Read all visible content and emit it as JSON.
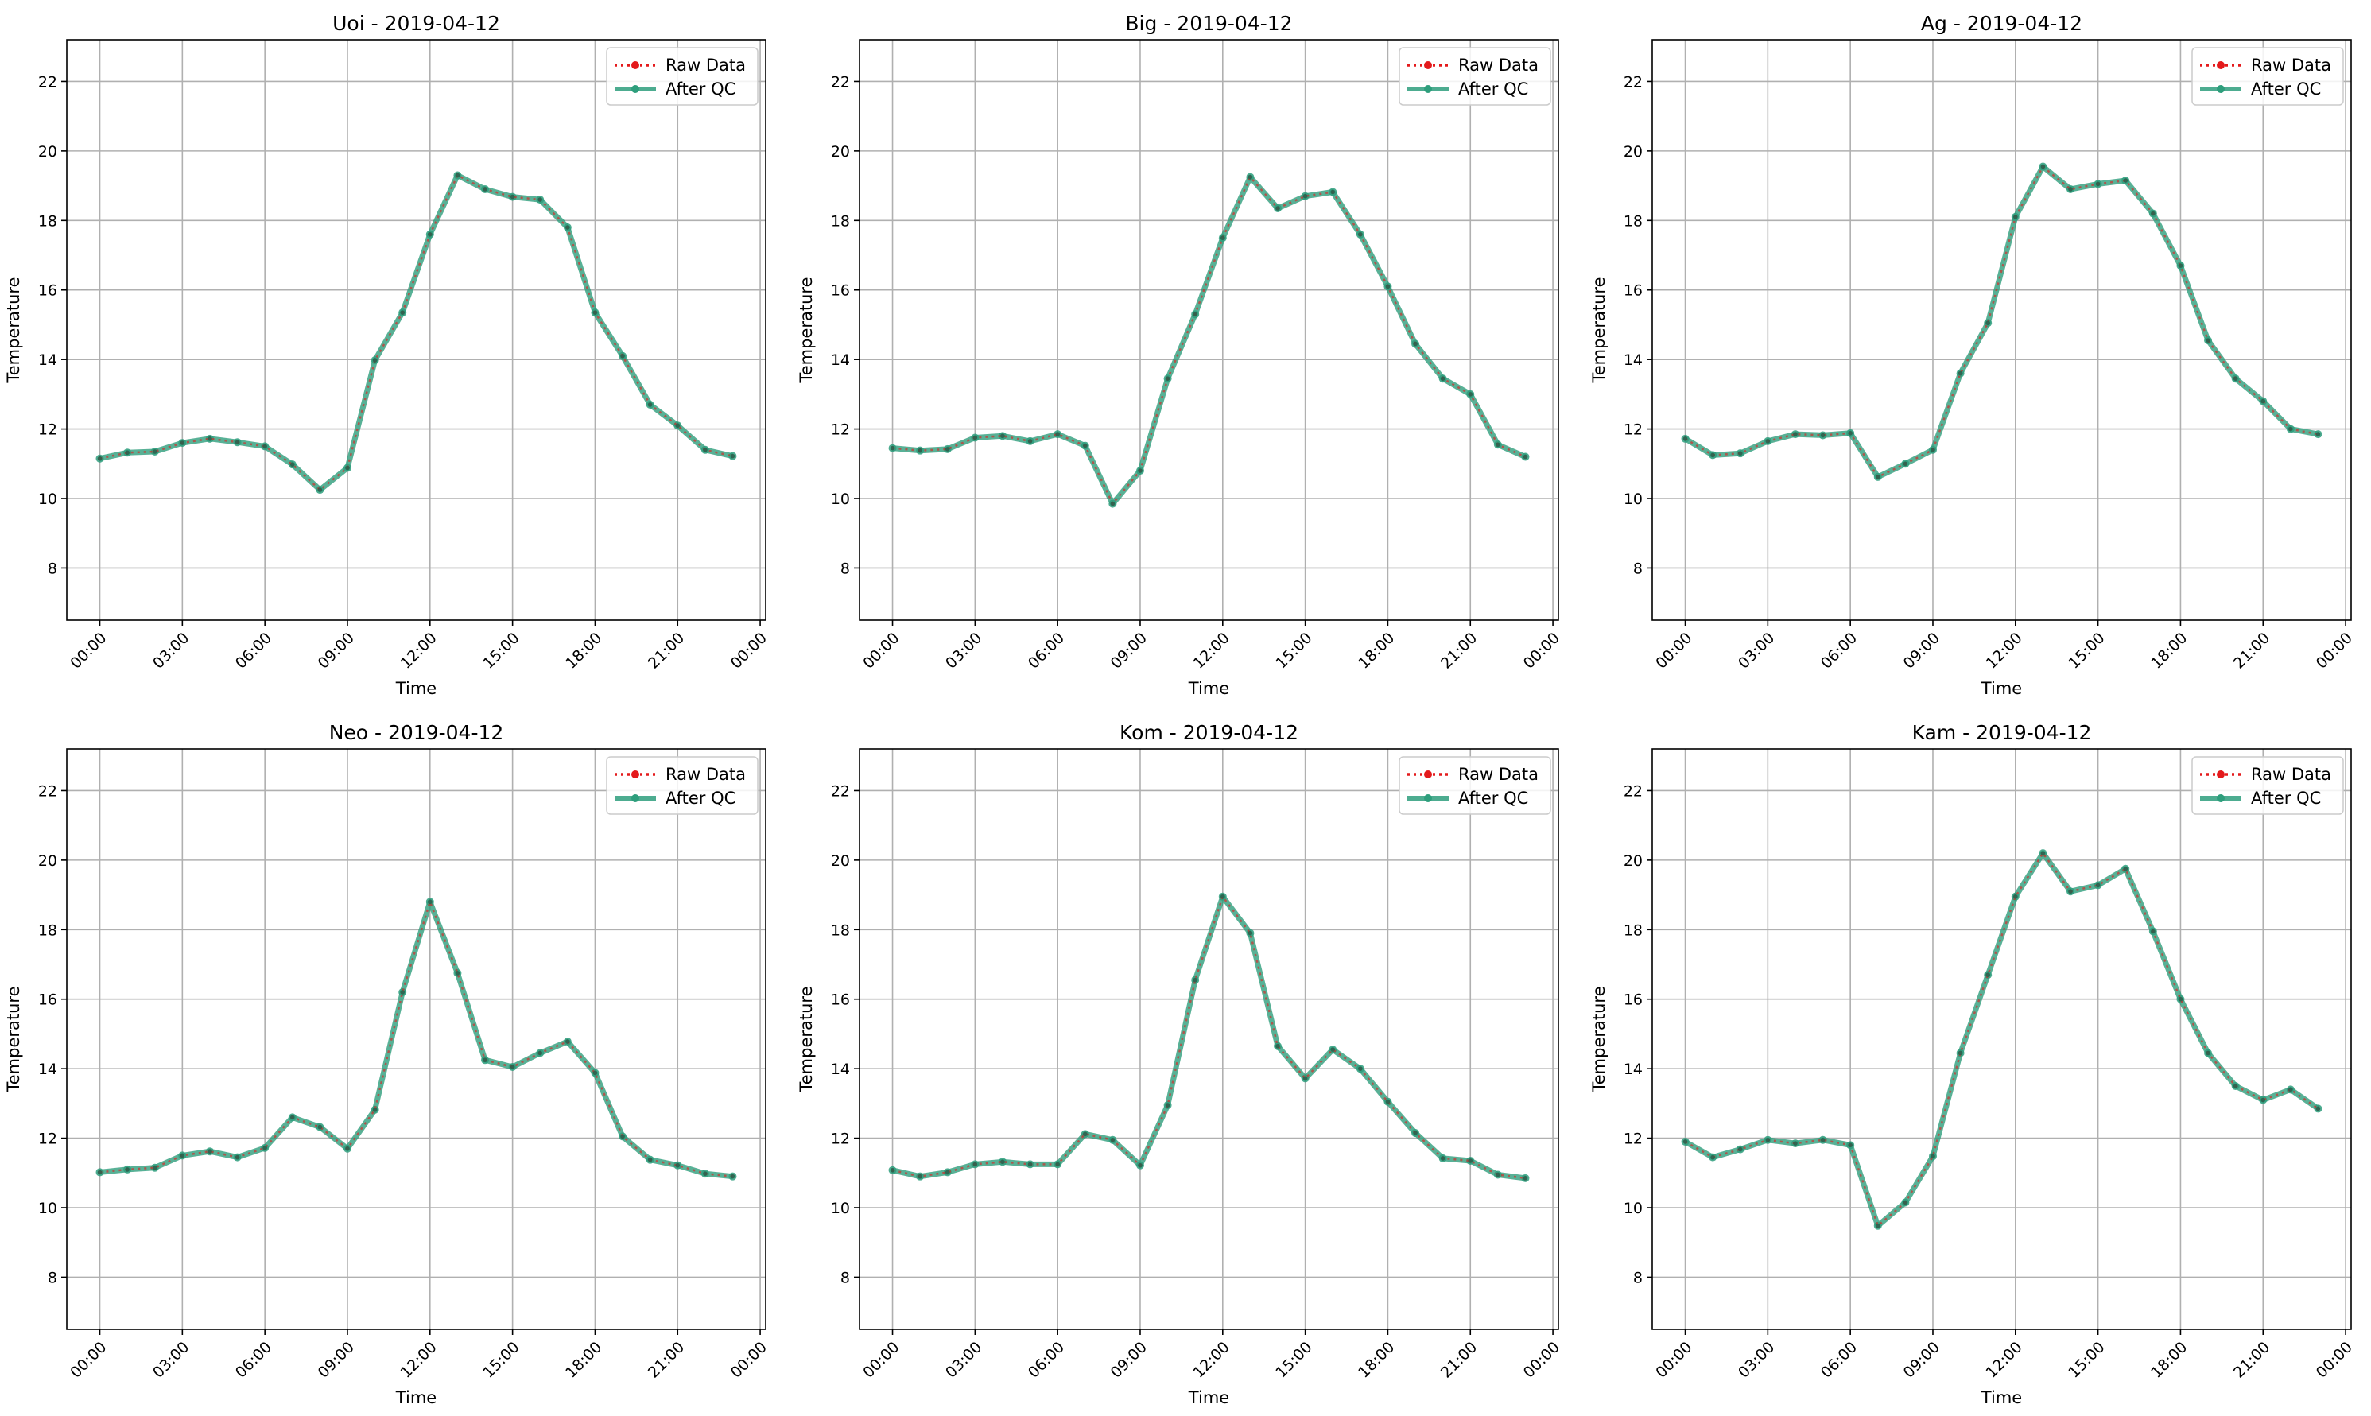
{
  "chart_data": [
    {
      "type": "line",
      "title": "Uoi - 2019-04-12",
      "xlabel": "Time",
      "ylabel": "Temperature",
      "ylim": [
        6.5,
        23.2
      ],
      "yticks": [
        8,
        10,
        12,
        14,
        16,
        18,
        20,
        22
      ],
      "xlim": [
        -1.2,
        24.2
      ],
      "xticks": [
        "00:00",
        "03:00",
        "06:00",
        "09:00",
        "12:00",
        "15:00",
        "18:00",
        "21:00",
        "00:00"
      ],
      "grid": true,
      "legend_placement": "top-right",
      "x": [
        0,
        1,
        2,
        3,
        4,
        5,
        6,
        7,
        8,
        9,
        10,
        11,
        12,
        13,
        14,
        15,
        16,
        17,
        18,
        19,
        20,
        21,
        22,
        23
      ],
      "series": [
        {
          "name": "Raw Data",
          "color": "#e41a1c",
          "style": "dotted-marker",
          "values": [
            11.15,
            11.32,
            11.35,
            11.6,
            11.72,
            11.62,
            11.5,
            10.98,
            10.25,
            10.88,
            13.98,
            15.35,
            17.6,
            19.3,
            18.9,
            18.68,
            18.6,
            17.8,
            15.35,
            14.1,
            12.7,
            12.1,
            11.4,
            11.22
          ]
        },
        {
          "name": "After QC",
          "color": "#2e9e7c",
          "style": "solid-marker",
          "values": [
            11.15,
            11.32,
            11.35,
            11.6,
            11.72,
            11.62,
            11.5,
            10.98,
            10.25,
            10.88,
            13.98,
            15.35,
            17.6,
            19.3,
            18.9,
            18.68,
            18.6,
            17.8,
            15.35,
            14.1,
            12.7,
            12.1,
            11.4,
            11.22
          ]
        }
      ]
    },
    {
      "type": "line",
      "title": "Big - 2019-04-12",
      "xlabel": "Time",
      "ylabel": "Temperature",
      "ylim": [
        6.5,
        23.2
      ],
      "yticks": [
        8,
        10,
        12,
        14,
        16,
        18,
        20,
        22
      ],
      "xlim": [
        -1.2,
        24.2
      ],
      "xticks": [
        "00:00",
        "03:00",
        "06:00",
        "09:00",
        "12:00",
        "15:00",
        "18:00",
        "21:00",
        "00:00"
      ],
      "grid": true,
      "legend_placement": "top-right",
      "x": [
        0,
        1,
        2,
        3,
        4,
        5,
        6,
        7,
        8,
        9,
        10,
        11,
        12,
        13,
        14,
        15,
        16,
        17,
        18,
        19,
        20,
        21,
        22,
        23
      ],
      "series": [
        {
          "name": "Raw Data",
          "color": "#e41a1c",
          "style": "dotted-marker",
          "values": [
            11.45,
            11.38,
            11.42,
            11.75,
            11.8,
            11.65,
            11.85,
            11.52,
            9.85,
            10.8,
            13.45,
            15.3,
            17.5,
            19.25,
            18.35,
            18.7,
            18.82,
            17.6,
            16.1,
            14.45,
            13.45,
            13.0,
            11.55,
            11.2
          ]
        },
        {
          "name": "After QC",
          "color": "#2e9e7c",
          "style": "solid-marker",
          "values": [
            11.45,
            11.38,
            11.42,
            11.75,
            11.8,
            11.65,
            11.85,
            11.52,
            9.85,
            10.8,
            13.45,
            15.3,
            17.5,
            19.25,
            18.35,
            18.7,
            18.82,
            17.6,
            16.1,
            14.45,
            13.45,
            13.0,
            11.55,
            11.2
          ]
        }
      ]
    },
    {
      "type": "line",
      "title": "Ag - 2019-04-12",
      "xlabel": "Time",
      "ylabel": "Temperature",
      "ylim": [
        6.5,
        23.2
      ],
      "yticks": [
        8,
        10,
        12,
        14,
        16,
        18,
        20,
        22
      ],
      "xlim": [
        -1.2,
        24.2
      ],
      "xticks": [
        "00:00",
        "03:00",
        "06:00",
        "09:00",
        "12:00",
        "15:00",
        "18:00",
        "21:00",
        "00:00"
      ],
      "grid": true,
      "legend_placement": "top-right",
      "x": [
        0,
        1,
        2,
        3,
        4,
        5,
        6,
        7,
        8,
        9,
        10,
        11,
        12,
        13,
        14,
        15,
        16,
        17,
        18,
        19,
        20,
        21,
        22,
        23
      ],
      "series": [
        {
          "name": "Raw Data",
          "color": "#e41a1c",
          "style": "dotted-marker",
          "values": [
            11.72,
            11.25,
            11.3,
            11.65,
            11.85,
            11.82,
            11.88,
            10.62,
            11.0,
            11.4,
            13.6,
            15.05,
            18.1,
            19.55,
            18.9,
            19.05,
            19.15,
            18.2,
            16.7,
            14.55,
            13.45,
            12.8,
            12.0,
            11.85
          ]
        },
        {
          "name": "After QC",
          "color": "#2e9e7c",
          "style": "solid-marker",
          "values": [
            11.72,
            11.25,
            11.3,
            11.65,
            11.85,
            11.82,
            11.88,
            10.62,
            11.0,
            11.4,
            13.6,
            15.05,
            18.1,
            19.55,
            18.9,
            19.05,
            19.15,
            18.2,
            16.7,
            14.55,
            13.45,
            12.8,
            12.0,
            11.85
          ]
        }
      ]
    },
    {
      "type": "line",
      "title": "Neo - 2019-04-12",
      "xlabel": "Time",
      "ylabel": "Temperature",
      "ylim": [
        6.5,
        23.2
      ],
      "yticks": [
        8,
        10,
        12,
        14,
        16,
        18,
        20,
        22
      ],
      "xlim": [
        -1.2,
        24.2
      ],
      "xticks": [
        "00:00",
        "03:00",
        "06:00",
        "09:00",
        "12:00",
        "15:00",
        "18:00",
        "21:00",
        "00:00"
      ],
      "grid": true,
      "legend_placement": "top-right",
      "x": [
        0,
        1,
        2,
        3,
        4,
        5,
        6,
        7,
        8,
        9,
        10,
        11,
        12,
        13,
        14,
        15,
        16,
        17,
        18,
        19,
        20,
        21,
        22,
        23
      ],
      "series": [
        {
          "name": "Raw Data",
          "color": "#e41a1c",
          "style": "dotted-marker",
          "values": [
            11.02,
            11.1,
            11.15,
            11.5,
            11.62,
            11.45,
            11.72,
            12.6,
            12.32,
            11.7,
            12.82,
            16.2,
            18.8,
            16.75,
            14.25,
            14.05,
            14.45,
            14.78,
            13.88,
            12.05,
            11.38,
            11.22,
            10.98,
            10.9
          ]
        },
        {
          "name": "After QC",
          "color": "#2e9e7c",
          "style": "solid-marker",
          "values": [
            11.02,
            11.1,
            11.15,
            11.5,
            11.62,
            11.45,
            11.72,
            12.6,
            12.32,
            11.7,
            12.82,
            16.2,
            18.8,
            16.75,
            14.25,
            14.05,
            14.45,
            14.78,
            13.88,
            12.05,
            11.38,
            11.22,
            10.98,
            10.9
          ]
        }
      ]
    },
    {
      "type": "line",
      "title": "Kom - 2019-04-12",
      "xlabel": "Time",
      "ylabel": "Temperature",
      "ylim": [
        6.5,
        23.2
      ],
      "yticks": [
        8,
        10,
        12,
        14,
        16,
        18,
        20,
        22
      ],
      "xlim": [
        -1.2,
        24.2
      ],
      "xticks": [
        "00:00",
        "03:00",
        "06:00",
        "09:00",
        "12:00",
        "15:00",
        "18:00",
        "21:00",
        "00:00"
      ],
      "grid": true,
      "legend_placement": "top-right",
      "x": [
        0,
        1,
        2,
        3,
        4,
        5,
        6,
        7,
        8,
        9,
        10,
        11,
        12,
        13,
        14,
        15,
        16,
        17,
        18,
        19,
        20,
        21,
        22,
        23
      ],
      "series": [
        {
          "name": "Raw Data",
          "color": "#e41a1c",
          "style": "dotted-marker",
          "values": [
            11.08,
            10.9,
            11.02,
            11.25,
            11.32,
            11.25,
            11.25,
            12.12,
            11.95,
            11.22,
            12.95,
            16.55,
            18.95,
            17.9,
            14.65,
            13.72,
            14.55,
            14.0,
            13.05,
            12.15,
            11.42,
            11.35,
            10.95,
            10.85
          ]
        },
        {
          "name": "After QC",
          "color": "#2e9e7c",
          "style": "solid-marker",
          "values": [
            11.08,
            10.9,
            11.02,
            11.25,
            11.32,
            11.25,
            11.25,
            12.12,
            11.95,
            11.22,
            12.95,
            16.55,
            18.95,
            17.9,
            14.65,
            13.72,
            14.55,
            14.0,
            13.05,
            12.15,
            11.42,
            11.35,
            10.95,
            10.85
          ]
        }
      ]
    },
    {
      "type": "line",
      "title": "Kam - 2019-04-12",
      "xlabel": "Time",
      "ylabel": "Temperature",
      "ylim": [
        6.5,
        23.2
      ],
      "yticks": [
        8,
        10,
        12,
        14,
        16,
        18,
        20,
        22
      ],
      "xlim": [
        -1.2,
        24.2
      ],
      "xticks": [
        "00:00",
        "03:00",
        "06:00",
        "09:00",
        "12:00",
        "15:00",
        "18:00",
        "21:00",
        "00:00"
      ],
      "grid": true,
      "legend_placement": "top-right",
      "x": [
        0,
        1,
        2,
        3,
        4,
        5,
        6,
        7,
        8,
        9,
        10,
        11,
        12,
        13,
        14,
        15,
        16,
        17,
        18,
        19,
        20,
        21,
        22,
        23
      ],
      "series": [
        {
          "name": "Raw Data",
          "color": "#e41a1c",
          "style": "dotted-marker",
          "values": [
            11.9,
            11.45,
            11.68,
            11.95,
            11.85,
            11.95,
            11.8,
            9.48,
            10.15,
            11.48,
            14.45,
            16.7,
            18.95,
            20.2,
            19.1,
            19.28,
            19.75,
            17.95,
            16.0,
            14.45,
            13.5,
            13.1,
            13.4,
            12.85
          ]
        },
        {
          "name": "After QC",
          "color": "#2e9e7c",
          "style": "solid-marker",
          "values": [
            11.9,
            11.45,
            11.68,
            11.95,
            11.85,
            11.95,
            11.8,
            9.48,
            10.15,
            11.48,
            14.45,
            16.7,
            18.95,
            20.2,
            19.1,
            19.28,
            19.75,
            17.95,
            16.0,
            14.45,
            13.5,
            13.1,
            13.4,
            12.85
          ]
        }
      ]
    }
  ]
}
